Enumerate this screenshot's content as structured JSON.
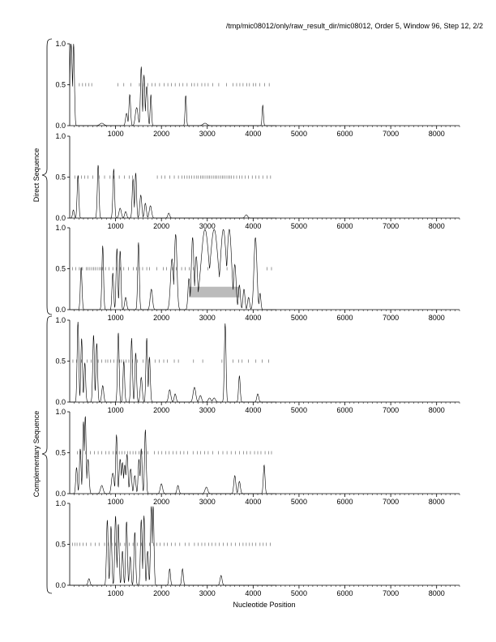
{
  "header": "/tmp/mic08012/only/raw_result_dir/mic08012, Order 5, Window 96, Step 12, 2/2",
  "xlabel": "Nucleotide Position",
  "group_labels": {
    "direct": "Direct Sequence",
    "complementary": "Complementary Sequence"
  },
  "colors": {
    "line": "#000000",
    "tick": "#555555",
    "highlight": "#bbbbbb"
  },
  "chart_data": [
    {
      "type": "line",
      "frame": 1,
      "strand": "direct",
      "xlim": [
        0,
        8500
      ],
      "ylim": [
        0,
        1
      ],
      "xticks": [
        1000,
        2000,
        3000,
        4000,
        5000,
        6000,
        7000,
        8000
      ],
      "yticks": [
        0.0,
        0.5,
        1.0
      ],
      "peaks": [
        [
          30,
          1.0,
          35
        ],
        [
          85,
          1.0,
          25
        ],
        [
          700,
          0.03,
          60
        ],
        [
          1240,
          0.15,
          30
        ],
        [
          1310,
          0.38,
          25
        ],
        [
          1460,
          0.22,
          40
        ],
        [
          1560,
          0.72,
          25
        ],
        [
          1620,
          0.62,
          25
        ],
        [
          1680,
          0.48,
          30
        ],
        [
          1770,
          0.38,
          20
        ],
        [
          2530,
          0.37,
          20
        ],
        [
          2950,
          0.03,
          60
        ],
        [
          4210,
          0.25,
          20
        ]
      ],
      "orf_ticks": [
        210,
        280,
        350,
        420,
        480,
        1050,
        1180,
        1330,
        1520,
        1610,
        1700,
        1790,
        1860,
        1960,
        2060,
        2140,
        2220,
        2300,
        2390,
        2470,
        2560,
        2660,
        2720,
        2790,
        2880,
        2950,
        3020,
        3120,
        3250,
        3420,
        3560,
        3640,
        3710,
        3780,
        3860,
        3920,
        4000,
        4060,
        4140,
        4250,
        4350
      ],
      "highlights": []
    },
    {
      "type": "line",
      "frame": 2,
      "strand": "direct",
      "xlim": [
        0,
        8500
      ],
      "ylim": [
        0,
        1
      ],
      "xticks": [
        1000,
        2000,
        3000,
        4000,
        5000,
        6000,
        7000,
        8000
      ],
      "yticks": [
        0.0,
        0.5,
        1.0
      ],
      "peaks": [
        [
          80,
          0.1,
          25
        ],
        [
          180,
          0.52,
          25
        ],
        [
          620,
          0.65,
          25
        ],
        [
          960,
          0.6,
          25
        ],
        [
          1100,
          0.12,
          35
        ],
        [
          1220,
          0.08,
          30
        ],
        [
          1380,
          0.48,
          25
        ],
        [
          1440,
          0.55,
          25
        ],
        [
          1550,
          0.28,
          30
        ],
        [
          1650,
          0.18,
          30
        ],
        [
          1760,
          0.15,
          35
        ],
        [
          2160,
          0.06,
          30
        ],
        [
          3850,
          0.04,
          40
        ]
      ],
      "orf_ticks": [
        110,
        190,
        260,
        330,
        400,
        500,
        640,
        760,
        880,
        960,
        1080,
        1190,
        1300,
        1370,
        1910,
        2000,
        2080,
        2180,
        2280,
        2370,
        2450,
        2500,
        2560,
        2610,
        2660,
        2710,
        2760,
        2800,
        2850,
        2890,
        2930,
        2970,
        3010,
        3050,
        3090,
        3130,
        3170,
        3210,
        3250,
        3290,
        3330,
        3370,
        3410,
        3450,
        3490,
        3530,
        3580,
        3640,
        3700,
        3760,
        3830,
        3900,
        3980,
        4060,
        4130,
        4210,
        4300,
        4380
      ],
      "highlights": []
    },
    {
      "type": "line",
      "frame": 3,
      "strand": "direct",
      "xlim": [
        0,
        8500
      ],
      "ylim": [
        0,
        1
      ],
      "xticks": [
        1000,
        2000,
        3000,
        4000,
        5000,
        6000,
        7000,
        8000
      ],
      "yticks": [
        0.0,
        0.5,
        1.0
      ],
      "peaks": [
        [
          250,
          0.52,
          25
        ],
        [
          720,
          0.78,
          25
        ],
        [
          940,
          0.45,
          25
        ],
        [
          1030,
          0.75,
          25
        ],
        [
          1100,
          0.72,
          25
        ],
        [
          1220,
          0.15,
          30
        ],
        [
          1500,
          0.82,
          25
        ],
        [
          1780,
          0.25,
          35
        ],
        [
          2230,
          0.62,
          45
        ],
        [
          2310,
          0.92,
          40
        ],
        [
          2600,
          0.38,
          30
        ],
        [
          2680,
          0.88,
          40
        ],
        [
          2760,
          0.65,
          40
        ],
        [
          2950,
          0.98,
          120
        ],
        [
          3150,
          0.98,
          120
        ],
        [
          3350,
          0.98,
          90
        ],
        [
          3480,
          0.98,
          70
        ],
        [
          3600,
          0.55,
          40
        ],
        [
          3700,
          0.3,
          30
        ],
        [
          3800,
          0.25,
          30
        ],
        [
          3900,
          0.15,
          30
        ],
        [
          4050,
          0.88,
          45
        ],
        [
          4150,
          0.2,
          25
        ]
      ],
      "orf_ticks": [
        60,
        130,
        210,
        280,
        360,
        400,
        440,
        480,
        520,
        560,
        600,
        640,
        680,
        720,
        780,
        860,
        940,
        1020,
        1100,
        1180,
        1280,
        1390,
        1460,
        1520,
        1590,
        1680,
        1740,
        1900,
        2040,
        2110,
        2240,
        2320,
        2440,
        2520,
        2610,
        2700,
        3010,
        3430,
        4300,
        4400
      ],
      "highlights": [
        [
          2600,
          3700,
          0.15,
          0.28
        ]
      ]
    },
    {
      "type": "line",
      "frame": 1,
      "strand": "complementary",
      "xlim": [
        0,
        8500
      ],
      "ylim": [
        0,
        1
      ],
      "xticks": [
        1000,
        2000,
        3000,
        4000,
        5000,
        6000,
        7000,
        8000
      ],
      "yticks": [
        0.0,
        0.5,
        1.0
      ],
      "peaks": [
        [
          180,
          0.98,
          25
        ],
        [
          260,
          0.78,
          25
        ],
        [
          330,
          0.48,
          25
        ],
        [
          520,
          0.82,
          25
        ],
        [
          590,
          0.72,
          25
        ],
        [
          720,
          0.2,
          30
        ],
        [
          1060,
          0.85,
          25
        ],
        [
          1180,
          0.5,
          25
        ],
        [
          1350,
          0.78,
          25
        ],
        [
          1440,
          0.6,
          25
        ],
        [
          1560,
          0.3,
          30
        ],
        [
          1680,
          0.78,
          25
        ],
        [
          1740,
          0.55,
          25
        ],
        [
          2180,
          0.15,
          35
        ],
        [
          2300,
          0.1,
          30
        ],
        [
          2720,
          0.18,
          40
        ],
        [
          2850,
          0.08,
          35
        ],
        [
          3050,
          0.05,
          40
        ],
        [
          3150,
          0.05,
          40
        ],
        [
          3390,
          0.96,
          25
        ],
        [
          3700,
          0.32,
          25
        ],
        [
          4100,
          0.1,
          30
        ]
      ],
      "orf_ticks": [
        70,
        150,
        260,
        380,
        470,
        620,
        700,
        780,
        830,
        890,
        960,
        1040,
        1090,
        1130,
        1180,
        1230,
        1290,
        1370,
        1480,
        1600,
        1730,
        1860,
        1950,
        2050,
        2130,
        2280,
        2370,
        2700,
        2900,
        3320,
        3560,
        3680,
        3760,
        3900,
        4060,
        4200,
        4340
      ],
      "highlights": []
    },
    {
      "type": "line",
      "frame": 2,
      "strand": "complementary",
      "xlim": [
        0,
        8500
      ],
      "ylim": [
        0,
        1
      ],
      "xticks": [
        1000,
        2000,
        3000,
        4000,
        5000,
        6000,
        7000,
        8000
      ],
      "yticks": [
        0.0,
        0.5,
        1.0
      ],
      "peaks": [
        [
          150,
          0.32,
          25
        ],
        [
          230,
          0.55,
          25
        ],
        [
          300,
          0.88,
          25
        ],
        [
          340,
          0.95,
          25
        ],
        [
          400,
          0.42,
          30
        ],
        [
          700,
          0.1,
          40
        ],
        [
          940,
          0.25,
          40
        ],
        [
          1020,
          0.72,
          25
        ],
        [
          1100,
          0.42,
          30
        ],
        [
          1150,
          0.38,
          30
        ],
        [
          1200,
          0.35,
          30
        ],
        [
          1250,
          0.48,
          30
        ],
        [
          1330,
          0.3,
          30
        ],
        [
          1420,
          0.22,
          30
        ],
        [
          1510,
          0.42,
          25
        ],
        [
          1560,
          0.55,
          25
        ],
        [
          1650,
          0.78,
          25
        ],
        [
          2000,
          0.12,
          35
        ],
        [
          2360,
          0.1,
          30
        ],
        [
          2980,
          0.08,
          40
        ],
        [
          3600,
          0.22,
          30
        ],
        [
          3700,
          0.15,
          30
        ],
        [
          4240,
          0.35,
          25
        ]
      ],
      "orf_ticks": [
        170,
        240,
        350,
        450,
        540,
        620,
        700,
        790,
        860,
        950,
        1020,
        1080,
        1140,
        1200,
        1260,
        1320,
        1380,
        1440,
        1510,
        1580,
        1630,
        1700,
        1850,
        1930,
        2010,
        2090,
        2170,
        2250,
        2330,
        2410,
        2490,
        2570,
        2690,
        2780,
        2850,
        2940,
        3020,
        3120,
        3240,
        3340,
        3430,
        3520,
        3610,
        3700,
        3790,
        3860,
        3940,
        4030,
        4100,
        4170,
        4260,
        4340,
        4400
      ],
      "highlights": []
    },
    {
      "type": "line",
      "frame": 3,
      "strand": "complementary",
      "xlim": [
        0,
        8500
      ],
      "ylim": [
        0,
        1
      ],
      "xticks": [
        1000,
        2000,
        3000,
        4000,
        5000,
        6000,
        7000,
        8000
      ],
      "yticks": [
        0.0,
        0.5,
        1.0
      ],
      "peaks": [
        [
          420,
          0.08,
          30
        ],
        [
          820,
          0.8,
          25
        ],
        [
          900,
          0.72,
          25
        ],
        [
          1000,
          0.85,
          25
        ],
        [
          1060,
          0.75,
          25
        ],
        [
          1150,
          0.42,
          25
        ],
        [
          1240,
          0.78,
          25
        ],
        [
          1320,
          0.35,
          25
        ],
        [
          1420,
          0.65,
          25
        ],
        [
          1560,
          0.8,
          25
        ],
        [
          1620,
          0.85,
          25
        ],
        [
          1700,
          0.42,
          25
        ],
        [
          1780,
          0.97,
          25
        ],
        [
          1820,
          0.97,
          25
        ],
        [
          2180,
          0.2,
          25
        ],
        [
          2460,
          0.2,
          25
        ],
        [
          3300,
          0.12,
          30
        ]
      ],
      "orf_ticks": [
        60,
        110,
        160,
        220,
        290,
        360,
        460,
        560,
        640,
        760,
        840,
        920,
        1000,
        1100,
        1200,
        1300,
        1380,
        1480,
        1560,
        1640,
        1740,
        1830,
        1900,
        1970,
        2060,
        2130,
        2220,
        2300,
        2400,
        2520,
        2600,
        2720,
        2800,
        2880,
        2950,
        3030,
        3100,
        3180,
        3260,
        3350,
        3440,
        3520,
        3610,
        3700,
        3780,
        3850,
        3920,
        3980,
        4060,
        4150,
        4220,
        4290,
        4370
      ],
      "highlights": []
    }
  ]
}
